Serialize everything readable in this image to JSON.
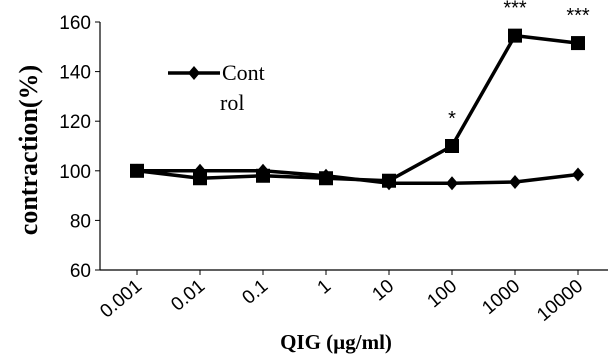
{
  "chart_data": {
    "type": "line",
    "xlabel": "QIG (µg/ml)",
    "ylabel": "contraction(%)",
    "categories": [
      "0.001",
      "0.01",
      "0.1",
      "1",
      "10",
      "100",
      "1000",
      "10000"
    ],
    "ylim": [
      60,
      160
    ],
    "yticks": [
      60,
      80,
      100,
      120,
      140,
      160
    ],
    "grid": false,
    "legend_position": "top-left",
    "legend_lines": [
      "Cont",
      "rol"
    ],
    "series": [
      {
        "name": "Control",
        "marker": "diamond",
        "values": [
          100,
          100,
          100,
          98,
          95,
          95,
          95.5,
          98.5
        ],
        "in_legend": true
      },
      {
        "marker": "square",
        "values": [
          100,
          97,
          98,
          97,
          96,
          110,
          154.5,
          151.5
        ],
        "in_legend": false
      }
    ],
    "annotations": [
      {
        "category": "100",
        "text": "*"
      },
      {
        "category": "1000",
        "text": "***"
      },
      {
        "category": "10000",
        "text": "***"
      }
    ],
    "colors": {
      "line": "#000000",
      "axis": "#000000"
    }
  }
}
